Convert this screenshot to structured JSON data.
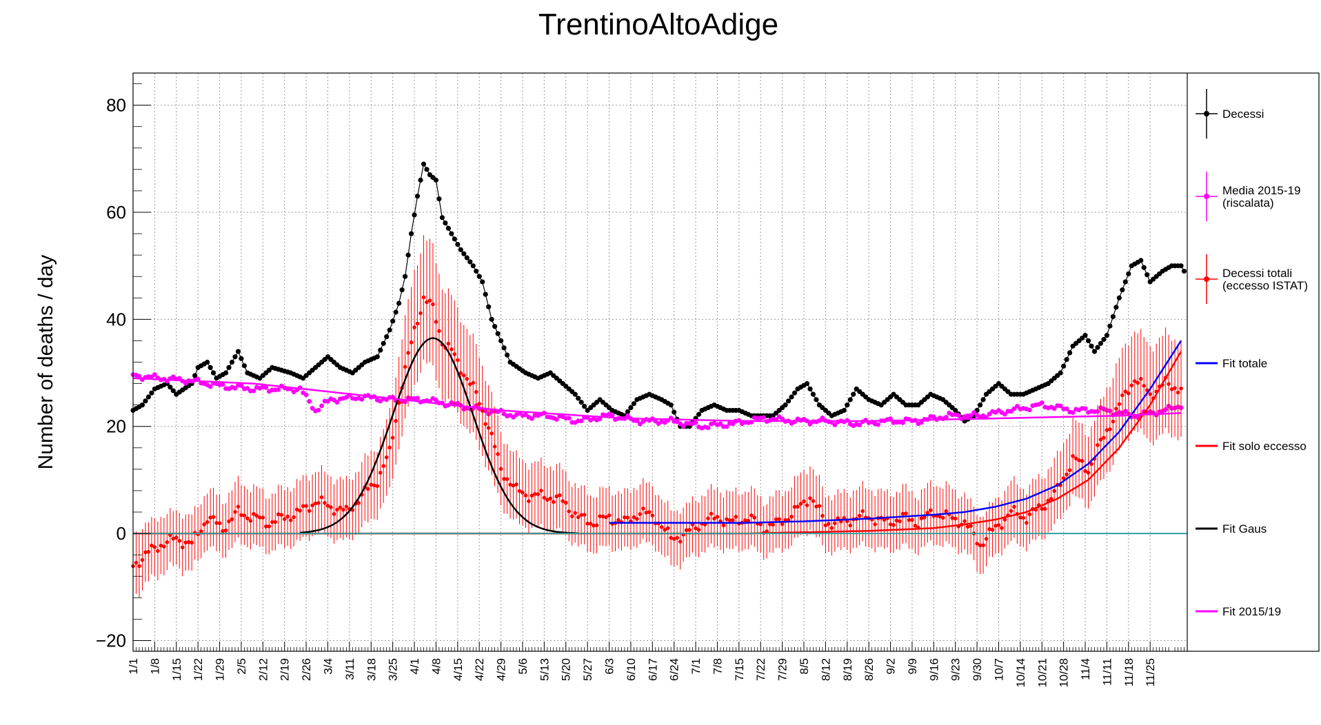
{
  "chart_data": {
    "type": "line",
    "title": "TrentinoAltoAdige",
    "ylabel": "Number of deaths / day",
    "xlabel": "",
    "ylim": [
      -22,
      86
    ],
    "grid": true,
    "legend_position": "right",
    "x_tick_labels": [
      "1/1",
      "1/8",
      "1/15",
      "1/22",
      "1/29",
      "2/5",
      "2/12",
      "2/19",
      "2/26",
      "3/4",
      "3/11",
      "3/18",
      "3/25",
      "4/1",
      "4/8",
      "4/15",
      "4/22",
      "4/29",
      "5/6",
      "5/13",
      "5/20",
      "5/27",
      "6/3",
      "6/10",
      "6/17",
      "6/24",
      "7/1",
      "7/8",
      "7/15",
      "7/22",
      "7/29",
      "8/5",
      "8/12",
      "8/19",
      "8/26",
      "9/2",
      "9/9",
      "9/16",
      "9/23",
      "9/30",
      "10/7",
      "10/14",
      "10/21",
      "10/28",
      "11/4",
      "11/11",
      "11/18",
      "11/25"
    ],
    "y_ticks": [
      -20,
      0,
      20,
      40,
      60,
      80
    ],
    "series": [
      {
        "name": "Decessi",
        "color": "#000000",
        "style": "line-markers",
        "points": [
          [
            1,
            23
          ],
          [
            4,
            24
          ],
          [
            8,
            27
          ],
          [
            12,
            28
          ],
          [
            15,
            26
          ],
          [
            20,
            28
          ],
          [
            22,
            31
          ],
          [
            25,
            32
          ],
          [
            28,
            29
          ],
          [
            31,
            30
          ],
          [
            35,
            34
          ],
          [
            38,
            30
          ],
          [
            42,
            29
          ],
          [
            46,
            31
          ],
          [
            52,
            30
          ],
          [
            56,
            29
          ],
          [
            60,
            31
          ],
          [
            64,
            33
          ],
          [
            68,
            31
          ],
          [
            72,
            30
          ],
          [
            76,
            32
          ],
          [
            80,
            33
          ],
          [
            84,
            38
          ],
          [
            87,
            43
          ],
          [
            89,
            48
          ],
          [
            91,
            56
          ],
          [
            93,
            63
          ],
          [
            95,
            69
          ],
          [
            97,
            67
          ],
          [
            99,
            66
          ],
          [
            101,
            59
          ],
          [
            104,
            56
          ],
          [
            107,
            53
          ],
          [
            111,
            50
          ],
          [
            114,
            47
          ],
          [
            117,
            40
          ],
          [
            120,
            36
          ],
          [
            123,
            32
          ],
          [
            128,
            30
          ],
          [
            132,
            29
          ],
          [
            136,
            30
          ],
          [
            140,
            28
          ],
          [
            144,
            26
          ],
          [
            148,
            23
          ],
          [
            152,
            25
          ],
          [
            156,
            23
          ],
          [
            160,
            22
          ],
          [
            164,
            25
          ],
          [
            168,
            26
          ],
          [
            172,
            25
          ],
          [
            175,
            24
          ],
          [
            178,
            20
          ],
          [
            181,
            20
          ],
          [
            185,
            23
          ],
          [
            189,
            24
          ],
          [
            193,
            23
          ],
          [
            197,
            23
          ],
          [
            201,
            22
          ],
          [
            205,
            22
          ],
          [
            208,
            22
          ],
          [
            212,
            24
          ],
          [
            216,
            27
          ],
          [
            219,
            28
          ],
          [
            223,
            24
          ],
          [
            227,
            22
          ],
          [
            231,
            23
          ],
          [
            235,
            27
          ],
          [
            239,
            25
          ],
          [
            243,
            24
          ],
          [
            247,
            26
          ],
          [
            251,
            24
          ],
          [
            255,
            24
          ],
          [
            259,
            26
          ],
          [
            263,
            25
          ],
          [
            267,
            23
          ],
          [
            270,
            21
          ],
          [
            273,
            22
          ],
          [
            277,
            26
          ],
          [
            281,
            28
          ],
          [
            285,
            26
          ],
          [
            289,
            26
          ],
          [
            293,
            27
          ],
          [
            297,
            28
          ],
          [
            301,
            30
          ],
          [
            305,
            35
          ],
          [
            309,
            37
          ],
          [
            312,
            34
          ],
          [
            316,
            37
          ],
          [
            320,
            44
          ],
          [
            324,
            50
          ],
          [
            327,
            51
          ],
          [
            330,
            47
          ],
          [
            334,
            49
          ],
          [
            337,
            50
          ],
          [
            340,
            50
          ],
          [
            341,
            49
          ]
        ]
      },
      {
        "name": "Media 2015-19 (riscalata)",
        "color": "#ff00ff",
        "style": "markers",
        "points": [
          [
            1,
            29.5
          ],
          [
            10,
            29
          ],
          [
            20,
            28.5
          ],
          [
            30,
            27.5
          ],
          [
            40,
            27
          ],
          [
            50,
            27
          ],
          [
            55,
            27
          ],
          [
            60,
            23
          ],
          [
            65,
            25
          ],
          [
            75,
            25.5
          ],
          [
            85,
            25
          ],
          [
            95,
            25
          ],
          [
            105,
            24
          ],
          [
            115,
            23
          ],
          [
            125,
            22
          ],
          [
            135,
            22
          ],
          [
            145,
            21
          ],
          [
            155,
            22
          ],
          [
            165,
            21
          ],
          [
            175,
            21
          ],
          [
            185,
            20
          ],
          [
            195,
            20.5
          ],
          [
            205,
            21.5
          ],
          [
            215,
            21
          ],
          [
            225,
            21
          ],
          [
            235,
            20.5
          ],
          [
            245,
            21
          ],
          [
            255,
            21
          ],
          [
            265,
            22
          ],
          [
            275,
            22
          ],
          [
            285,
            23
          ],
          [
            295,
            24
          ],
          [
            305,
            23
          ],
          [
            315,
            23
          ],
          [
            325,
            22
          ],
          [
            335,
            23
          ],
          [
            340,
            24
          ]
        ]
      },
      {
        "name": "Decessi totali (eccesso ISTAT)",
        "color": "#ff0000",
        "style": "markers-errorbars",
        "error": 5,
        "points": [
          [
            1,
            -6
          ],
          [
            5,
            -4
          ],
          [
            10,
            -2
          ],
          [
            15,
            -1
          ],
          [
            20,
            -2
          ],
          [
            25,
            3
          ],
          [
            30,
            1
          ],
          [
            35,
            4
          ],
          [
            40,
            3
          ],
          [
            45,
            2
          ],
          [
            50,
            3
          ],
          [
            55,
            4
          ],
          [
            60,
            6
          ],
          [
            65,
            5
          ],
          [
            70,
            4
          ],
          [
            75,
            7
          ],
          [
            80,
            10
          ],
          [
            84,
            15
          ],
          [
            88,
            28
          ],
          [
            92,
            38
          ],
          [
            95,
            44
          ],
          [
            98,
            42
          ],
          [
            101,
            36
          ],
          [
            104,
            34
          ],
          [
            108,
            30
          ],
          [
            112,
            26
          ],
          [
            116,
            20
          ],
          [
            120,
            12
          ],
          [
            125,
            8
          ],
          [
            130,
            7
          ],
          [
            135,
            7
          ],
          [
            140,
            6
          ],
          [
            145,
            3
          ],
          [
            150,
            2
          ],
          [
            155,
            3
          ],
          [
            160,
            2
          ],
          [
            165,
            4
          ],
          [
            170,
            3
          ],
          [
            175,
            -1
          ],
          [
            180,
            0
          ],
          [
            185,
            2
          ],
          [
            190,
            3
          ],
          [
            195,
            2
          ],
          [
            200,
            3
          ],
          [
            205,
            1
          ],
          [
            210,
            2
          ],
          [
            215,
            4
          ],
          [
            220,
            7
          ],
          [
            225,
            2
          ],
          [
            230,
            2
          ],
          [
            235,
            3
          ],
          [
            240,
            3
          ],
          [
            245,
            2
          ],
          [
            250,
            3
          ],
          [
            255,
            2
          ],
          [
            260,
            4
          ],
          [
            265,
            3
          ],
          [
            270,
            2
          ],
          [
            275,
            -2
          ],
          [
            280,
            1
          ],
          [
            285,
            4
          ],
          [
            290,
            3
          ],
          [
            295,
            5
          ],
          [
            300,
            8
          ],
          [
            305,
            14
          ],
          [
            310,
            12
          ],
          [
            315,
            18
          ],
          [
            320,
            24
          ],
          [
            325,
            29
          ],
          [
            330,
            26
          ],
          [
            335,
            28
          ],
          [
            340,
            27
          ]
        ]
      },
      {
        "name": "Fit totale",
        "color": "#0000ff",
        "style": "line",
        "points": [
          [
            155,
            2
          ],
          [
            180,
            2
          ],
          [
            200,
            2
          ],
          [
            220,
            2.3
          ],
          [
            240,
            2.8
          ],
          [
            260,
            3.5
          ],
          [
            270,
            4
          ],
          [
            280,
            5
          ],
          [
            290,
            6.5
          ],
          [
            300,
            9
          ],
          [
            310,
            13
          ],
          [
            320,
            19
          ],
          [
            330,
            27
          ],
          [
            340,
            36
          ]
        ]
      },
      {
        "name": "Fit solo eccesso",
        "color": "#ff0000",
        "style": "line",
        "points": [
          [
            1,
            0
          ],
          [
            100,
            0
          ],
          [
            200,
            0
          ],
          [
            240,
            0.5
          ],
          [
            260,
            1
          ],
          [
            270,
            1.7
          ],
          [
            280,
            2.6
          ],
          [
            290,
            4
          ],
          [
            300,
            6.5
          ],
          [
            310,
            10
          ],
          [
            320,
            16
          ],
          [
            330,
            24
          ],
          [
            340,
            34
          ]
        ]
      },
      {
        "name": "Fit Gaus",
        "color": "#000000",
        "style": "line",
        "peak_day": 98,
        "amplitude": 36.5,
        "sigma": 13,
        "points": [
          [
            50,
            0
          ],
          [
            70,
            2
          ],
          [
            80,
            7
          ],
          [
            88,
            21
          ],
          [
            93,
            30
          ],
          [
            98,
            36.5
          ],
          [
            103,
            33
          ],
          [
            108,
            26
          ],
          [
            118,
            10
          ],
          [
            128,
            2
          ],
          [
            140,
            0
          ]
        ]
      },
      {
        "name": "Fit 2015/19",
        "color": "#ff00ff",
        "style": "line",
        "points": [
          [
            1,
            29
          ],
          [
            40,
            28
          ],
          [
            80,
            25.5
          ],
          [
            120,
            23
          ],
          [
            160,
            21.5
          ],
          [
            200,
            21
          ],
          [
            240,
            21
          ],
          [
            280,
            21.5
          ],
          [
            320,
            22
          ],
          [
            340,
            22.5
          ]
        ]
      }
    ]
  },
  "legend": {
    "items": [
      {
        "line1": "Decessi",
        "line2": "",
        "color": "#000000",
        "kind": "errmarker"
      },
      {
        "line1": "Media 2015-19",
        "line2": "(riscalata)",
        "color": "#ff00ff",
        "kind": "errmarker"
      },
      {
        "line1": "Decessi totali",
        "line2": "(eccesso ISTAT)",
        "color": "#ff0000",
        "kind": "errmarker"
      },
      {
        "line1": "Fit totale",
        "line2": "",
        "color": "#0000ff",
        "kind": "line"
      },
      {
        "line1": "Fit solo eccesso",
        "line2": "",
        "color": "#ff0000",
        "kind": "line"
      },
      {
        "line1": "Fit Gaus",
        "line2": "",
        "color": "#000000",
        "kind": "line"
      },
      {
        "line1": "Fit 2015/19",
        "line2": "",
        "color": "#ff00ff",
        "kind": "line"
      }
    ]
  }
}
